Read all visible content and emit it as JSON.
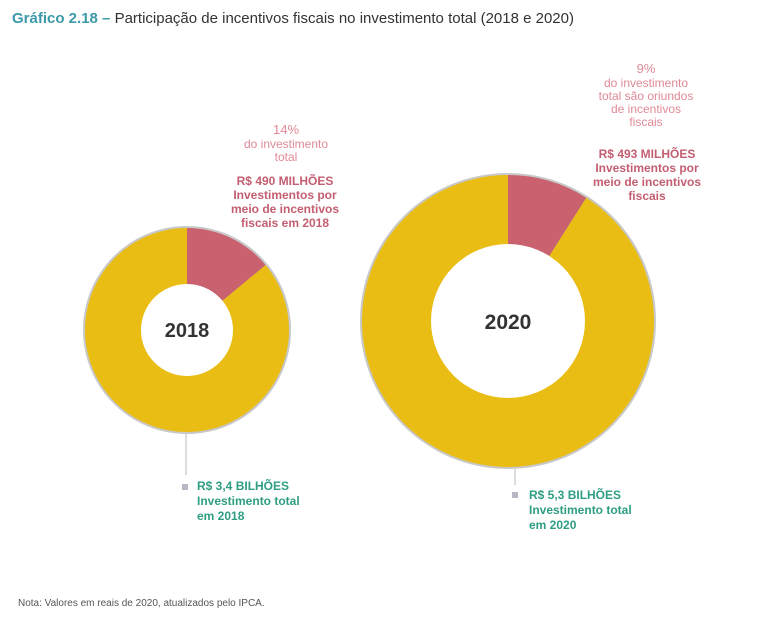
{
  "header": {
    "figure_number": "Gráfico 2.18 –",
    "title": "Participação de incentivos fiscais no investimento total (2018 e 2020)"
  },
  "chart_data": {
    "type": "pie",
    "title": "Participação de incentivos fiscais no investimento total (2018 e 2020)",
    "colors": {
      "total": "#e9bd14",
      "incentive": "#c9616f",
      "ring": "#c8c8c8",
      "hole": "#ffffff",
      "year_text": "#333333"
    },
    "charts": [
      {
        "year": "2018",
        "incentive_share": 0.14,
        "percent_text": "14%",
        "percent_desc": [
          "do investimento",
          "total"
        ],
        "incentive_label": [
          "R$ 490 MILHÕES",
          "Investimentos por",
          "meio de incentivos",
          "fiscais em 2018"
        ],
        "total_label": [
          "R$ 3,4 BILHÕES",
          "Investimento total",
          "em 2018"
        ]
      },
      {
        "year": "2020",
        "incentive_share": 0.09,
        "percent_text": "9%",
        "percent_desc": [
          "do investimento",
          "total são oriundos",
          "de incentivos",
          "fiscais"
        ],
        "incentive_label": [
          "R$ 493 MILHÕES",
          "Investimentos por",
          "meio de incentivos",
          "fiscais"
        ],
        "total_label": [
          "R$ 5,3 BILHÕES",
          "Investimento total",
          "em 2020"
        ]
      }
    ]
  },
  "footer": {
    "note": "Nota: Valores em reais de 2020, atualizados pelo IPCA."
  }
}
